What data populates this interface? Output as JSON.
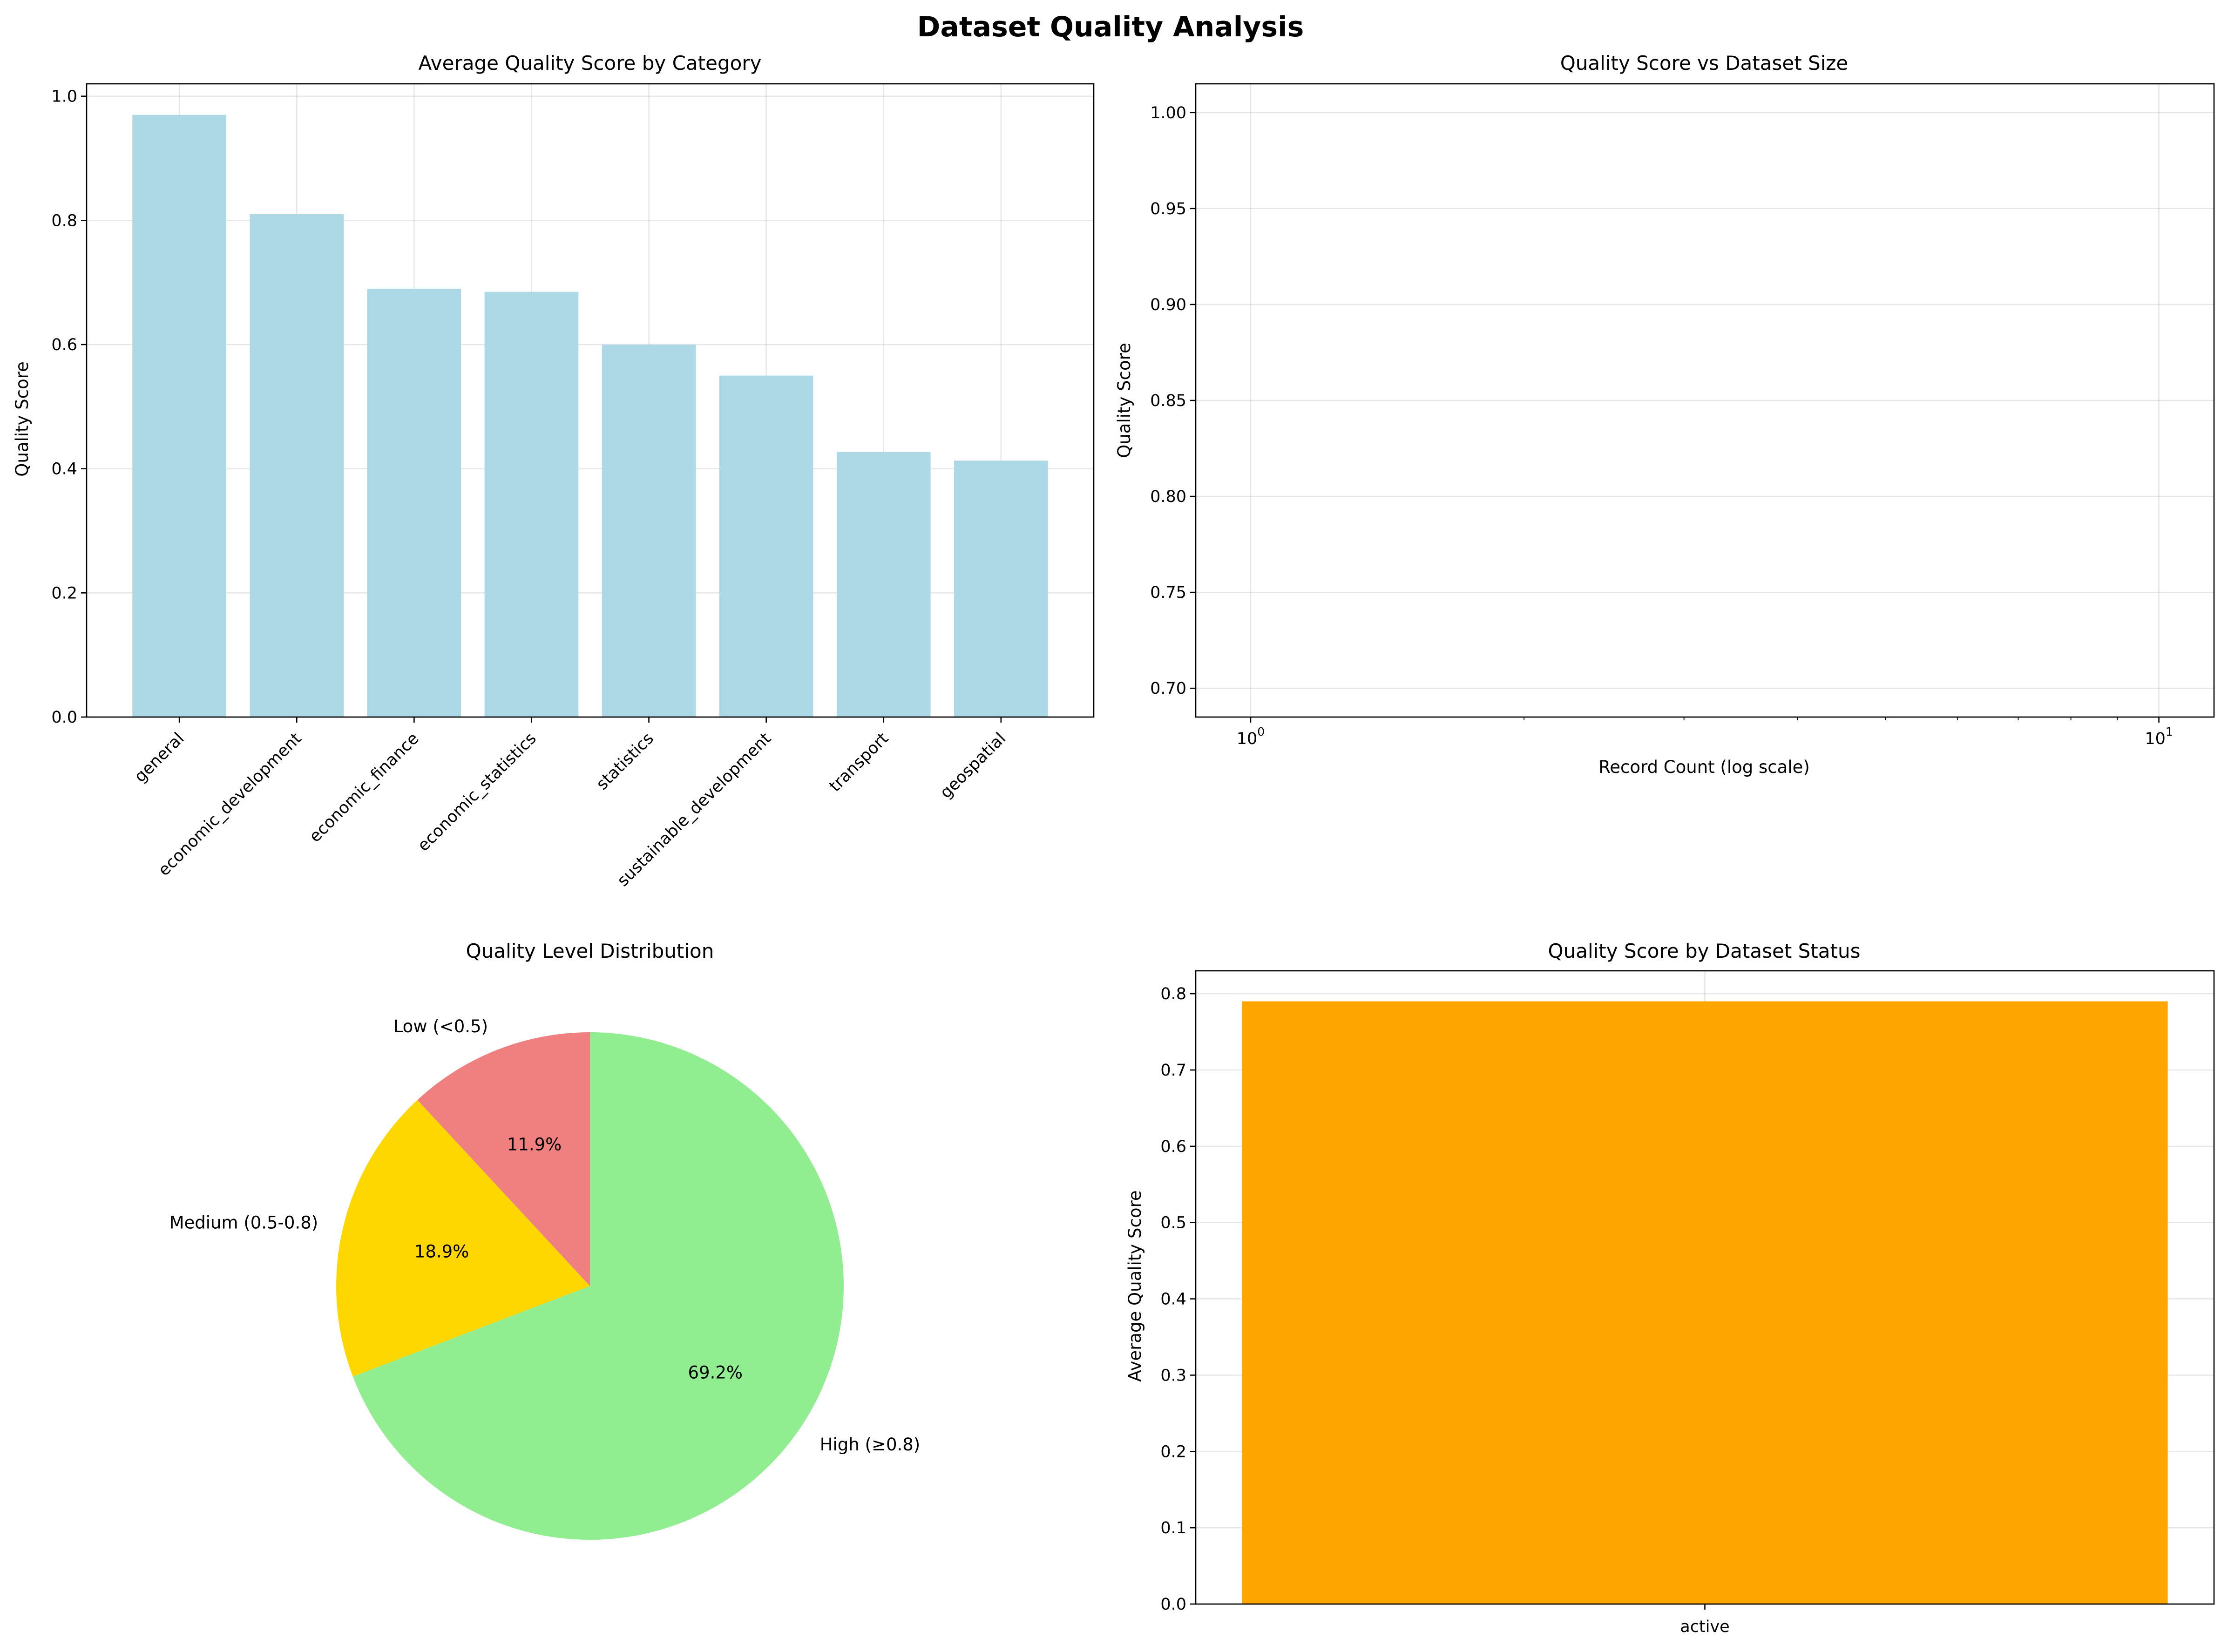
{
  "suptitle": "Dataset Quality Analysis",
  "colors": {
    "bar_category": "#add8e6",
    "bar_status": "#ffa500",
    "pie_low": "#f08080",
    "pie_medium": "#ffd700",
    "pie_high": "#90ee90"
  },
  "chart_data": [
    {
      "type": "bar",
      "title": "Average Quality Score by Category",
      "xlabel": "",
      "ylabel": "Quality Score",
      "categories": [
        "general",
        "economic_development",
        "economic_finance",
        "economic_statistics",
        "statistics",
        "sustainable_development",
        "transport",
        "geospatial"
      ],
      "values": [
        0.97,
        0.81,
        0.69,
        0.685,
        0.6,
        0.55,
        0.427,
        0.413
      ],
      "ylim": [
        0,
        1.02
      ],
      "yticks": [
        "0.0",
        "0.2",
        "0.4",
        "0.6",
        "0.8",
        "1.0"
      ],
      "grid": true
    },
    {
      "type": "scatter",
      "title": "Quality Score vs Dataset Size",
      "xlabel": "Record Count (log scale)",
      "ylabel": "Quality Score",
      "xscale": "log",
      "xlim": [
        0.87,
        11.5
      ],
      "ylim": [
        0.685,
        1.015
      ],
      "xticks": [
        {
          "value": 1,
          "base": "10",
          "exp": "0"
        },
        {
          "value": 10,
          "base": "10",
          "exp": "1"
        }
      ],
      "yticks": [
        "0.70",
        "0.75",
        "0.80",
        "0.85",
        "0.90",
        "0.95",
        "1.00"
      ],
      "points": [],
      "grid": true
    },
    {
      "type": "pie",
      "title": "Quality Level Distribution",
      "slices": [
        {
          "label": "High (≥0.8)",
          "value": 69.2,
          "pct": "69.2%"
        },
        {
          "label": "Medium (0.5-0.8)",
          "value": 18.9,
          "pct": "18.9%"
        },
        {
          "label": "Low (<0.5)",
          "value": 11.9,
          "pct": "11.9%"
        }
      ]
    },
    {
      "type": "bar",
      "title": "Quality Score by Dataset Status",
      "xlabel": "",
      "ylabel": "Average Quality Score",
      "categories": [
        "active"
      ],
      "values": [
        0.79
      ],
      "ylim": [
        0,
        0.83
      ],
      "yticks": [
        "0.0",
        "0.1",
        "0.2",
        "0.3",
        "0.4",
        "0.5",
        "0.6",
        "0.7",
        "0.8"
      ],
      "grid": true
    }
  ]
}
